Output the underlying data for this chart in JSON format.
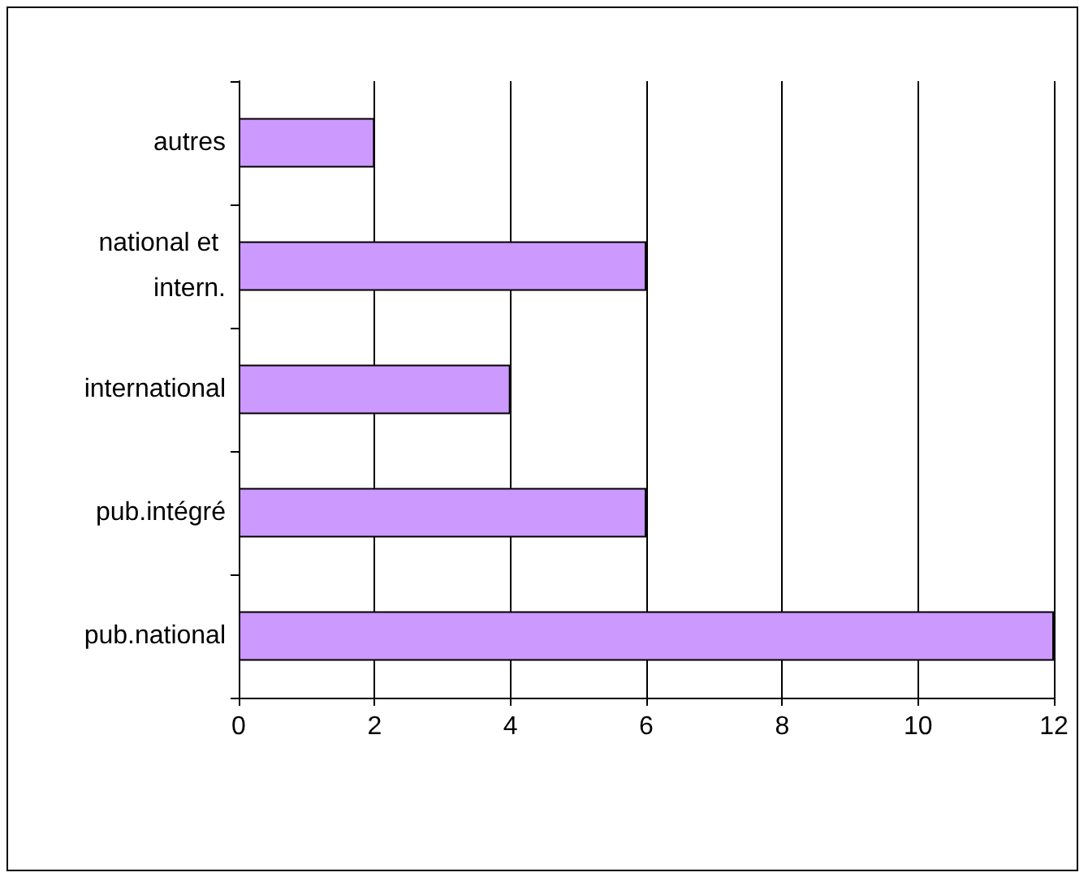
{
  "chart_data": {
    "type": "bar",
    "orientation": "horizontal",
    "categories": [
      "autres",
      "national et intern.",
      "international",
      "pub.intégré",
      "pub.national"
    ],
    "values": [
      2,
      6,
      4,
      6,
      12
    ],
    "color": "#cc99ff",
    "xlim": [
      0,
      12
    ],
    "xticks": [
      0,
      2,
      4,
      6,
      8,
      10,
      12
    ],
    "grid": "x"
  }
}
